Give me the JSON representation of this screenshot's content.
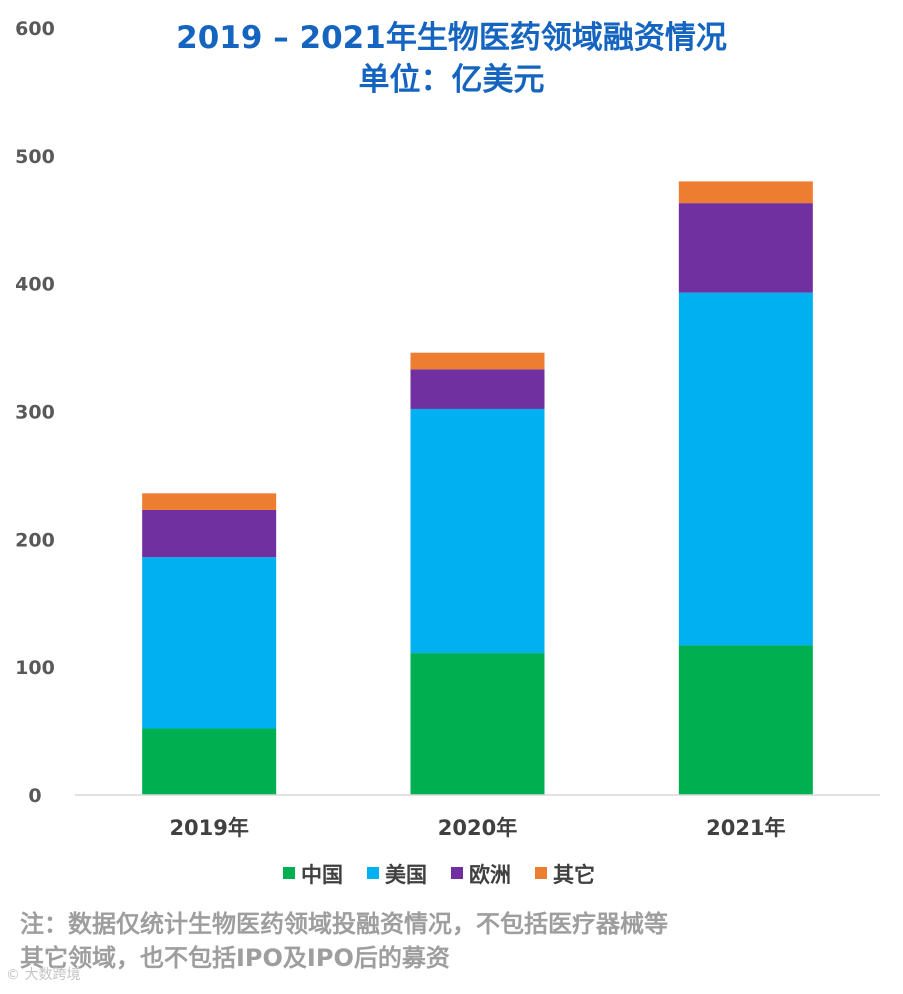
{
  "title_line1": "2019 – 2021年生物医药领域融资情况",
  "title_line2": "单位：亿美元",
  "note_line1": "注：数据仅统计生物医药领域投融资情况，不包括医疗器械等",
  "note_line2": "其它领域，也不包括IPO及IPO后的募资",
  "watermark": "© 大数跨境",
  "chart_data": {
    "type": "bar",
    "stacked": true,
    "categories": [
      "2019年",
      "2020年",
      "2021年"
    ],
    "series": [
      {
        "name": "中国",
        "color": "#00b050",
        "values": [
          52,
          111,
          117
        ]
      },
      {
        "name": "美国",
        "color": "#00b0f0",
        "values": [
          134,
          191,
          276
        ]
      },
      {
        "name": "欧洲",
        "color": "#7030a0",
        "values": [
          37,
          31,
          70
        ]
      },
      {
        "name": "其它",
        "color": "#ed7d31",
        "values": [
          13,
          13,
          17
        ]
      }
    ],
    "ylim": [
      0,
      600
    ],
    "yticks": [
      0,
      100,
      200,
      300,
      400,
      500,
      600
    ],
    "grid": false,
    "legend_position": "bottom"
  }
}
